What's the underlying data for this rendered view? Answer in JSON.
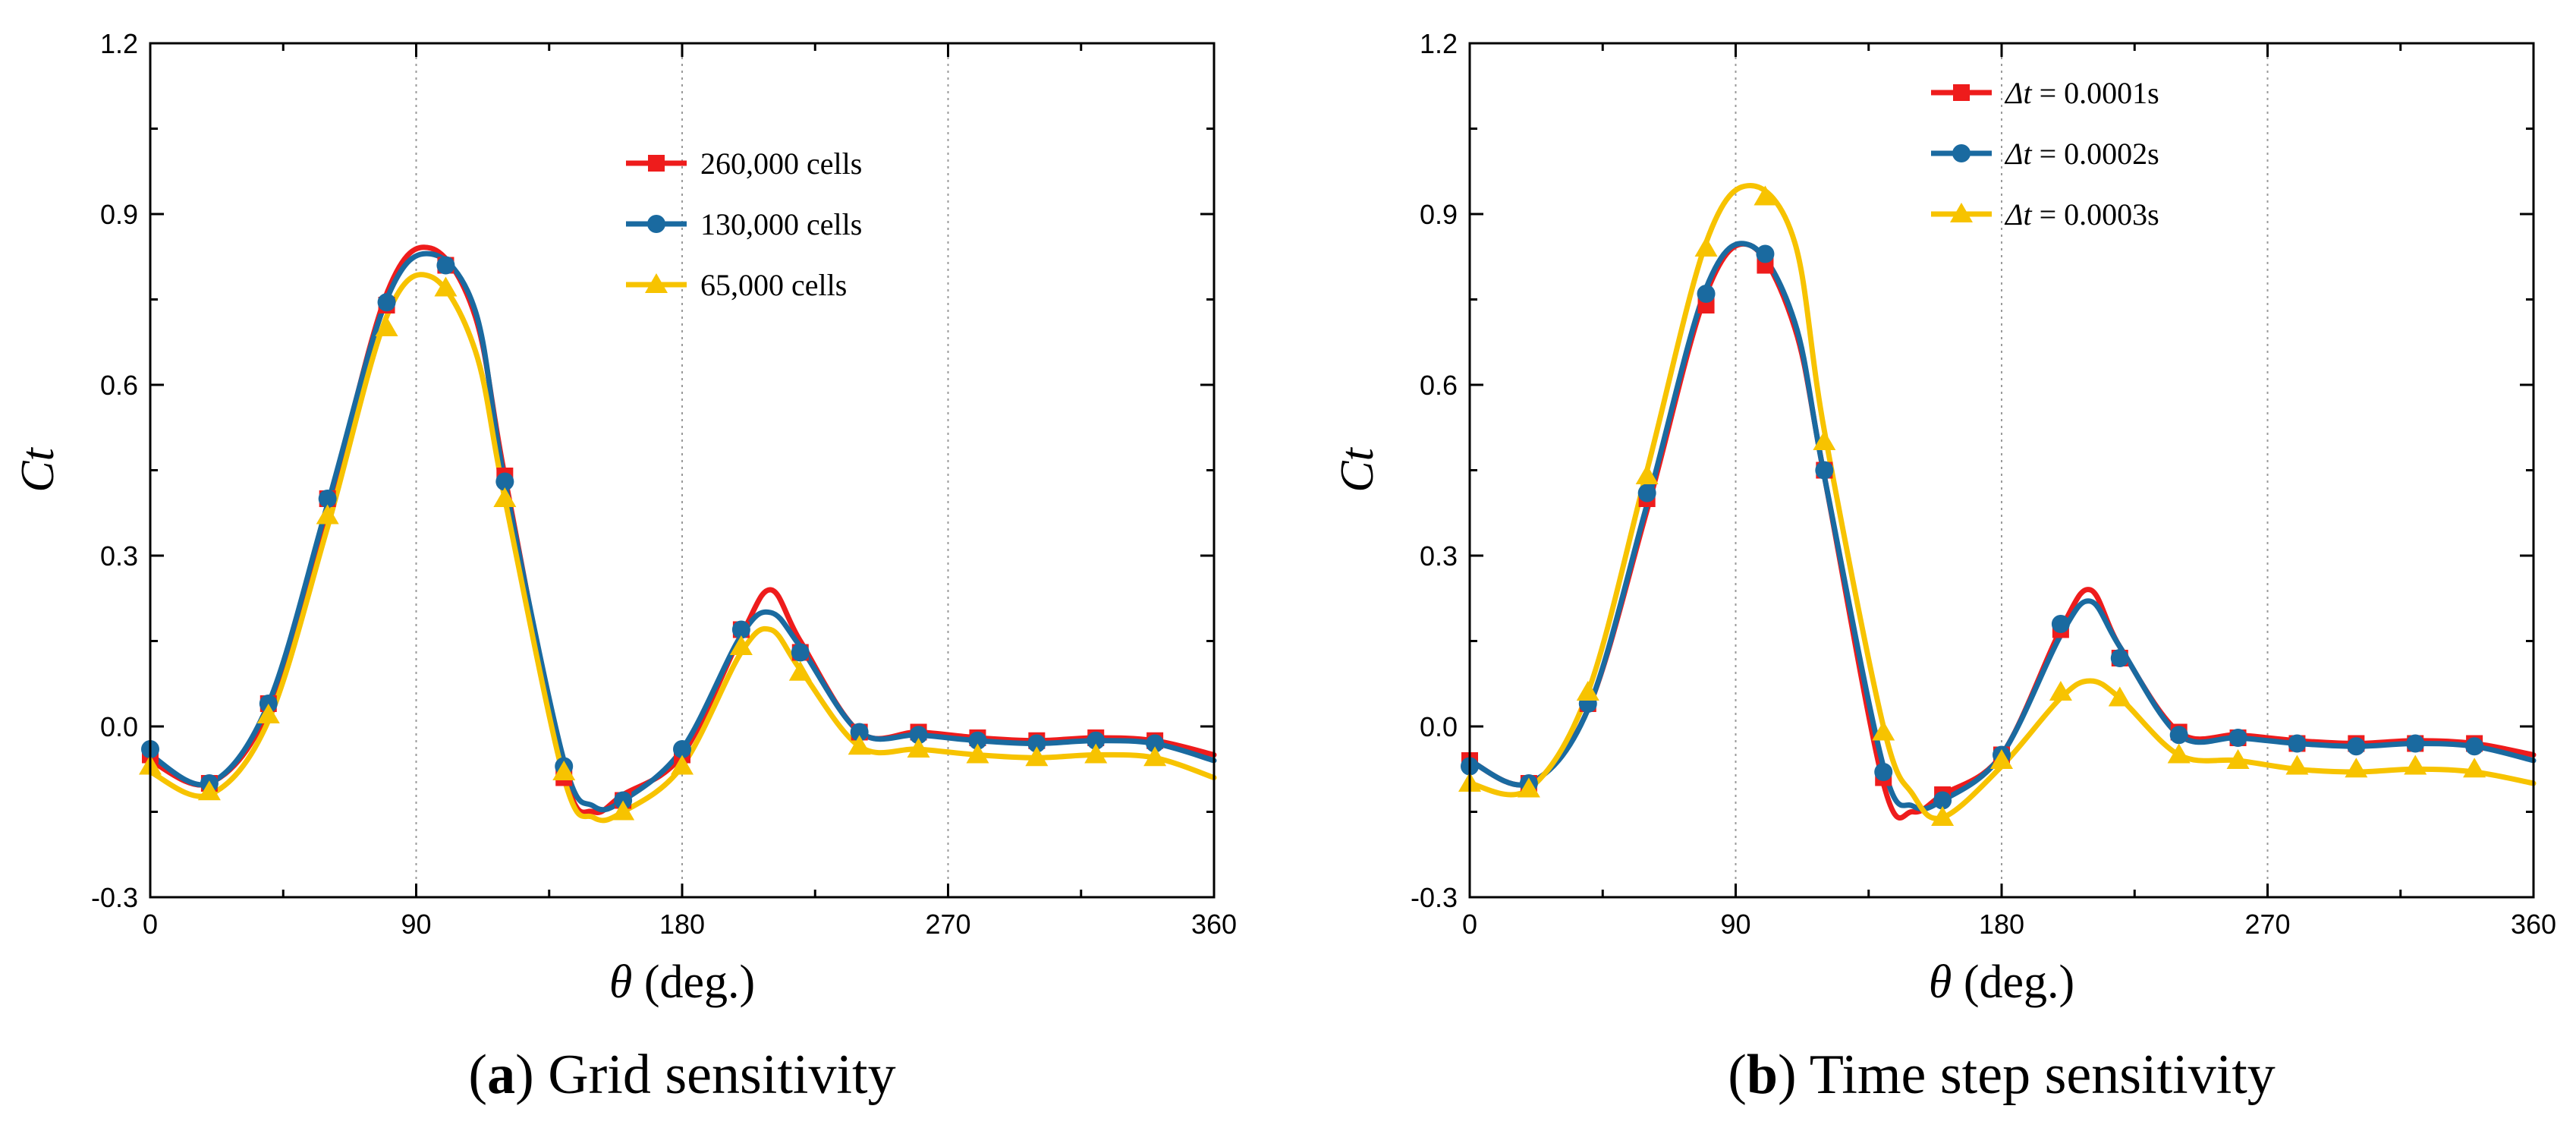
{
  "chart_data": [
    {
      "type": "line",
      "panel_label": "a",
      "caption": "Grid sensitivity",
      "xlabel_symbol": "θ",
      "xlabel_unit": "(deg.)",
      "ylabel": "Ct",
      "xlim": [
        0,
        360
      ],
      "ylim": [
        -0.3,
        1.2
      ],
      "xticks": [
        0,
        90,
        180,
        270,
        360
      ],
      "yticks": [
        -0.3,
        0.0,
        0.3,
        0.6,
        0.9,
        1.2
      ],
      "ytick_labels": [
        "-0.3",
        "0.0",
        "0.3",
        "0.6",
        "0.9",
        "1.2"
      ],
      "vertical_gridlines": [
        90,
        180,
        270
      ],
      "legend_position": "top-right",
      "series": [
        {
          "name": "260,000 cells",
          "color": "#ee1c1c",
          "marker": "square",
          "curve": [
            [
              0,
              -0.06
            ],
            [
              20,
              -0.1
            ],
            [
              40,
              0.03
            ],
            [
              60,
              0.38
            ],
            [
              80,
              0.76
            ],
            [
              95,
              0.84
            ],
            [
              110,
              0.72
            ],
            [
              120,
              0.44
            ],
            [
              140,
              -0.08
            ],
            [
              150,
              -0.15
            ],
            [
              160,
              -0.12
            ],
            [
              180,
              -0.05
            ],
            [
              200,
              0.16
            ],
            [
              210,
              0.24
            ],
            [
              220,
              0.15
            ],
            [
              240,
              -0.01
            ],
            [
              260,
              -0.01
            ],
            [
              280,
              -0.02
            ],
            [
              300,
              -0.025
            ],
            [
              320,
              -0.02
            ],
            [
              340,
              -0.025
            ],
            [
              360,
              -0.05
            ]
          ],
          "markers": [
            [
              0,
              -0.05
            ],
            [
              20,
              -0.1
            ],
            [
              40,
              0.04
            ],
            [
              60,
              0.4
            ],
            [
              80,
              0.74
            ],
            [
              100,
              0.81
            ],
            [
              120,
              0.44
            ],
            [
              140,
              -0.09
            ],
            [
              160,
              -0.13
            ],
            [
              180,
              -0.05
            ],
            [
              200,
              0.17
            ],
            [
              220,
              0.13
            ],
            [
              240,
              -0.01
            ],
            [
              260,
              -0.01
            ],
            [
              280,
              -0.02
            ],
            [
              300,
              -0.025
            ],
            [
              320,
              -0.02
            ],
            [
              340,
              -0.025
            ]
          ]
        },
        {
          "name": "130,000 cells",
          "color": "#1a6aa0",
          "marker": "circle",
          "curve": [
            [
              0,
              -0.05
            ],
            [
              20,
              -0.1
            ],
            [
              40,
              0.04
            ],
            [
              60,
              0.39
            ],
            [
              80,
              0.75
            ],
            [
              95,
              0.83
            ],
            [
              110,
              0.73
            ],
            [
              120,
              0.43
            ],
            [
              140,
              -0.06
            ],
            [
              150,
              -0.14
            ],
            [
              160,
              -0.13
            ],
            [
              180,
              -0.04
            ],
            [
              200,
              0.16
            ],
            [
              210,
              0.2
            ],
            [
              220,
              0.14
            ],
            [
              240,
              -0.01
            ],
            [
              260,
              -0.015
            ],
            [
              280,
              -0.025
            ],
            [
              300,
              -0.03
            ],
            [
              320,
              -0.025
            ],
            [
              340,
              -0.03
            ],
            [
              360,
              -0.06
            ]
          ],
          "markers": [
            [
              0,
              -0.04
            ],
            [
              20,
              -0.1
            ],
            [
              40,
              0.04
            ],
            [
              60,
              0.4
            ],
            [
              80,
              0.745
            ],
            [
              100,
              0.81
            ],
            [
              120,
              0.43
            ],
            [
              140,
              -0.07
            ],
            [
              160,
              -0.13
            ],
            [
              180,
              -0.04
            ],
            [
              200,
              0.17
            ],
            [
              220,
              0.13
            ],
            [
              240,
              -0.01
            ],
            [
              260,
              -0.015
            ],
            [
              280,
              -0.025
            ],
            [
              300,
              -0.03
            ],
            [
              320,
              -0.025
            ],
            [
              340,
              -0.03
            ]
          ]
        },
        {
          "name": "65,000 cells",
          "color": "#f7c300",
          "marker": "triangle",
          "curve": [
            [
              0,
              -0.08
            ],
            [
              20,
              -0.12
            ],
            [
              40,
              0.01
            ],
            [
              60,
              0.35
            ],
            [
              80,
              0.72
            ],
            [
              95,
              0.79
            ],
            [
              110,
              0.66
            ],
            [
              120,
              0.4
            ],
            [
              140,
              -0.09
            ],
            [
              150,
              -0.16
            ],
            [
              160,
              -0.15
            ],
            [
              180,
              -0.07
            ],
            [
              200,
              0.13
            ],
            [
              210,
              0.17
            ],
            [
              220,
              0.1
            ],
            [
              240,
              -0.035
            ],
            [
              260,
              -0.04
            ],
            [
              280,
              -0.05
            ],
            [
              300,
              -0.055
            ],
            [
              320,
              -0.05
            ],
            [
              340,
              -0.055
            ],
            [
              360,
              -0.09
            ]
          ],
          "markers": [
            [
              0,
              -0.07
            ],
            [
              20,
              -0.115
            ],
            [
              40,
              0.02
            ],
            [
              60,
              0.37
            ],
            [
              80,
              0.7
            ],
            [
              100,
              0.77
            ],
            [
              120,
              0.4
            ],
            [
              140,
              -0.08
            ],
            [
              160,
              -0.15
            ],
            [
              180,
              -0.07
            ],
            [
              200,
              0.14
            ],
            [
              220,
              0.095
            ],
            [
              240,
              -0.035
            ],
            [
              260,
              -0.04
            ],
            [
              280,
              -0.05
            ],
            [
              300,
              -0.055
            ],
            [
              320,
              -0.05
            ],
            [
              340,
              -0.055
            ]
          ]
        }
      ]
    },
    {
      "type": "line",
      "panel_label": "b",
      "caption": "Time step sensitivity",
      "xlabel_symbol": "θ",
      "xlabel_unit": "(deg.)",
      "ylabel": "Ct",
      "xlim": [
        0,
        360
      ],
      "ylim": [
        -0.3,
        1.2
      ],
      "xticks": [
        0,
        90,
        180,
        270,
        360
      ],
      "yticks": [
        -0.3,
        0.0,
        0.3,
        0.6,
        0.9,
        1.2
      ],
      "ytick_labels": [
        "-0.3",
        "0.0",
        "0.3",
        "0.6",
        "0.9",
        "1.2"
      ],
      "vertical_gridlines": [
        90,
        180,
        270
      ],
      "legend_position": "top-right",
      "series": [
        {
          "name": "Δt = 0.0001s",
          "legend_symbol": "Δt",
          "legend_value": " = 0.0001s",
          "color": "#ee1c1c",
          "marker": "square",
          "curve": [
            [
              0,
              -0.06
            ],
            [
              20,
              -0.1
            ],
            [
              40,
              0.03
            ],
            [
              60,
              0.38
            ],
            [
              80,
              0.76
            ],
            [
              95,
              0.845
            ],
            [
              110,
              0.7
            ],
            [
              120,
              0.44
            ],
            [
              140,
              -0.1
            ],
            [
              150,
              -0.15
            ],
            [
              160,
              -0.12
            ],
            [
              180,
              -0.05
            ],
            [
              200,
              0.17
            ],
            [
              210,
              0.24
            ],
            [
              220,
              0.14
            ],
            [
              240,
              -0.01
            ],
            [
              260,
              -0.015
            ],
            [
              280,
              -0.025
            ],
            [
              300,
              -0.03
            ],
            [
              320,
              -0.025
            ],
            [
              340,
              -0.03
            ],
            [
              360,
              -0.05
            ]
          ],
          "markers": [
            [
              0,
              -0.06
            ],
            [
              20,
              -0.1
            ],
            [
              40,
              0.04
            ],
            [
              60,
              0.4
            ],
            [
              80,
              0.74
            ],
            [
              100,
              0.81
            ],
            [
              120,
              0.45
            ],
            [
              140,
              -0.09
            ],
            [
              160,
              -0.12
            ],
            [
              180,
              -0.05
            ],
            [
              200,
              0.17
            ],
            [
              220,
              0.12
            ],
            [
              240,
              -0.01
            ],
            [
              260,
              -0.02
            ],
            [
              280,
              -0.03
            ],
            [
              300,
              -0.03
            ],
            [
              320,
              -0.03
            ],
            [
              340,
              -0.03
            ]
          ]
        },
        {
          "name": "Δt = 0.0002s",
          "legend_symbol": "Δt",
          "legend_value": " = 0.0002s",
          "color": "#1a6aa0",
          "marker": "circle",
          "curve": [
            [
              0,
              -0.06
            ],
            [
              20,
              -0.1
            ],
            [
              40,
              0.03
            ],
            [
              60,
              0.39
            ],
            [
              80,
              0.77
            ],
            [
              95,
              0.845
            ],
            [
              110,
              0.71
            ],
            [
              120,
              0.44
            ],
            [
              140,
              -0.07
            ],
            [
              150,
              -0.14
            ],
            [
              160,
              -0.13
            ],
            [
              180,
              -0.05
            ],
            [
              200,
              0.16
            ],
            [
              210,
              0.22
            ],
            [
              220,
              0.14
            ],
            [
              240,
              -0.015
            ],
            [
              260,
              -0.02
            ],
            [
              280,
              -0.03
            ],
            [
              300,
              -0.035
            ],
            [
              320,
              -0.03
            ],
            [
              340,
              -0.035
            ],
            [
              360,
              -0.06
            ]
          ],
          "markers": [
            [
              0,
              -0.07
            ],
            [
              20,
              -0.1
            ],
            [
              40,
              0.04
            ],
            [
              60,
              0.41
            ],
            [
              80,
              0.76
            ],
            [
              100,
              0.83
            ],
            [
              120,
              0.45
            ],
            [
              140,
              -0.08
            ],
            [
              160,
              -0.13
            ],
            [
              180,
              -0.05
            ],
            [
              200,
              0.18
            ],
            [
              220,
              0.12
            ],
            [
              240,
              -0.015
            ],
            [
              260,
              -0.02
            ],
            [
              280,
              -0.03
            ],
            [
              300,
              -0.035
            ],
            [
              320,
              -0.03
            ],
            [
              340,
              -0.035
            ]
          ]
        },
        {
          "name": "Δt = 0.0003s",
          "legend_symbol": "Δt",
          "legend_value": " = 0.0003s",
          "color": "#f7c300",
          "marker": "triangle",
          "curve": [
            [
              0,
              -0.1
            ],
            [
              20,
              -0.11
            ],
            [
              40,
              0.06
            ],
            [
              60,
              0.45
            ],
            [
              80,
              0.85
            ],
            [
              95,
              0.95
            ],
            [
              110,
              0.85
            ],
            [
              120,
              0.52
            ],
            [
              140,
              0.0
            ],
            [
              150,
              -0.12
            ],
            [
              160,
              -0.16
            ],
            [
              180,
              -0.07
            ],
            [
              200,
              0.05
            ],
            [
              210,
              0.08
            ],
            [
              220,
              0.05
            ],
            [
              240,
              -0.05
            ],
            [
              260,
              -0.06
            ],
            [
              280,
              -0.075
            ],
            [
              300,
              -0.08
            ],
            [
              320,
              -0.075
            ],
            [
              340,
              -0.08
            ],
            [
              360,
              -0.1
            ]
          ],
          "markers": [
            [
              0,
              -0.1
            ],
            [
              20,
              -0.11
            ],
            [
              40,
              0.06
            ],
            [
              60,
              0.44
            ],
            [
              80,
              0.84
            ],
            [
              100,
              0.93
            ],
            [
              120,
              0.5
            ],
            [
              140,
              -0.01
            ],
            [
              160,
              -0.16
            ],
            [
              180,
              -0.06
            ],
            [
              200,
              0.06
            ],
            [
              220,
              0.05
            ],
            [
              240,
              -0.05
            ],
            [
              260,
              -0.06
            ],
            [
              280,
              -0.07
            ],
            [
              300,
              -0.075
            ],
            [
              320,
              -0.07
            ],
            [
              340,
              -0.075
            ]
          ]
        }
      ]
    }
  ]
}
